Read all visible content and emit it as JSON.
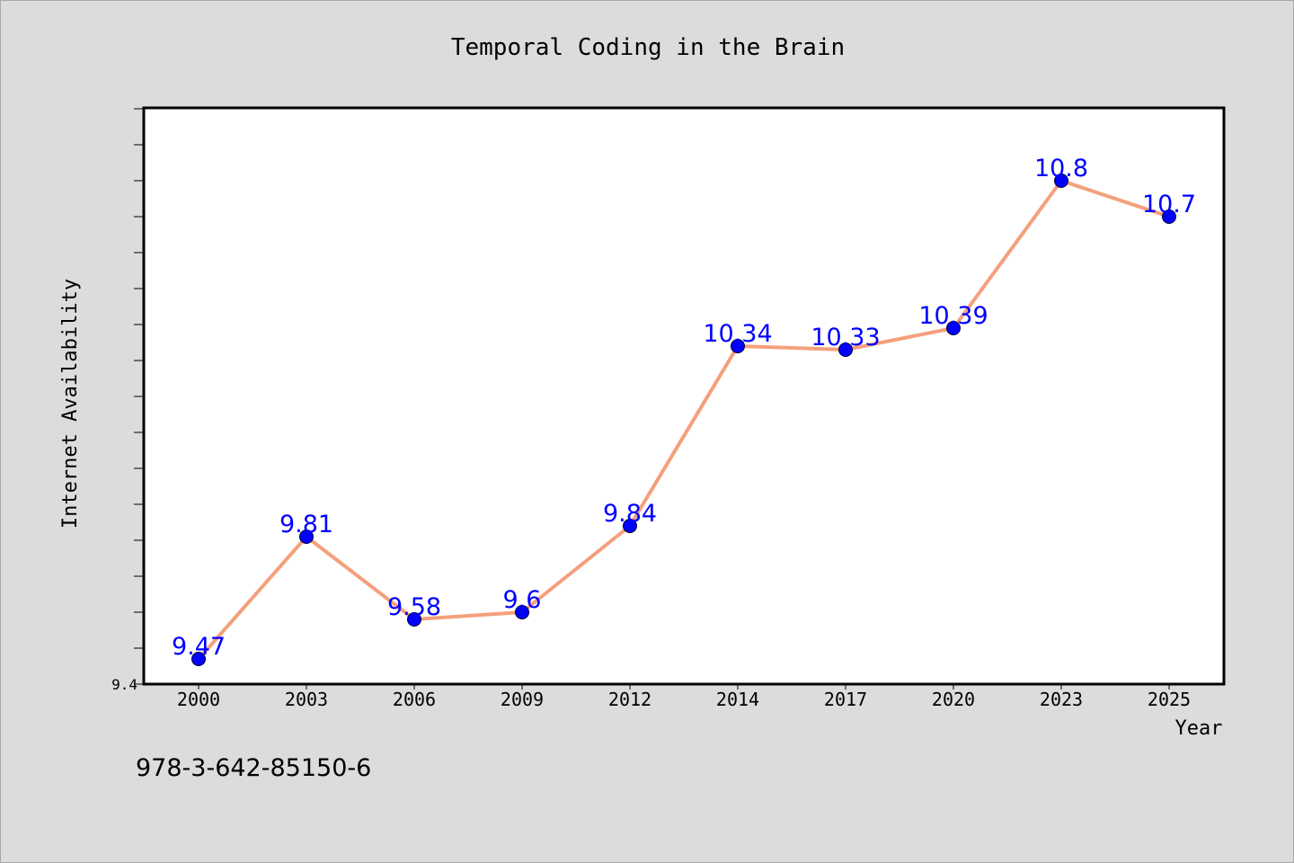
{
  "chart_data": {
    "type": "line",
    "title": "Temporal Coding in the Brain",
    "xlabel": "Year",
    "ylabel": "Internet Availability",
    "categories": [
      "2000",
      "2003",
      "2006",
      "2009",
      "2012",
      "2014",
      "2017",
      "2020",
      "2023",
      "2025"
    ],
    "values": [
      9.47,
      9.81,
      9.58,
      9.6,
      9.84,
      10.34,
      10.33,
      10.39,
      10.8,
      10.7
    ],
    "data_labels": [
      "9.47",
      "9.81",
      "9.58",
      "9.6",
      "9.84",
      "10.34",
      "10.33",
      "10.39",
      "10.8",
      "10.7"
    ],
    "ylim": [
      9.4,
      11.0
    ],
    "y_tick_labels": [
      "9.4"
    ],
    "grid": false,
    "legend": "none"
  },
  "footer": {
    "code": "978-3-642-85150-6"
  },
  "colors": {
    "background": "#dcdcdc",
    "plot_background": "#ffffff",
    "line": "#f4a07c",
    "marker": "#0000ff",
    "data_label": "#0000ff"
  }
}
